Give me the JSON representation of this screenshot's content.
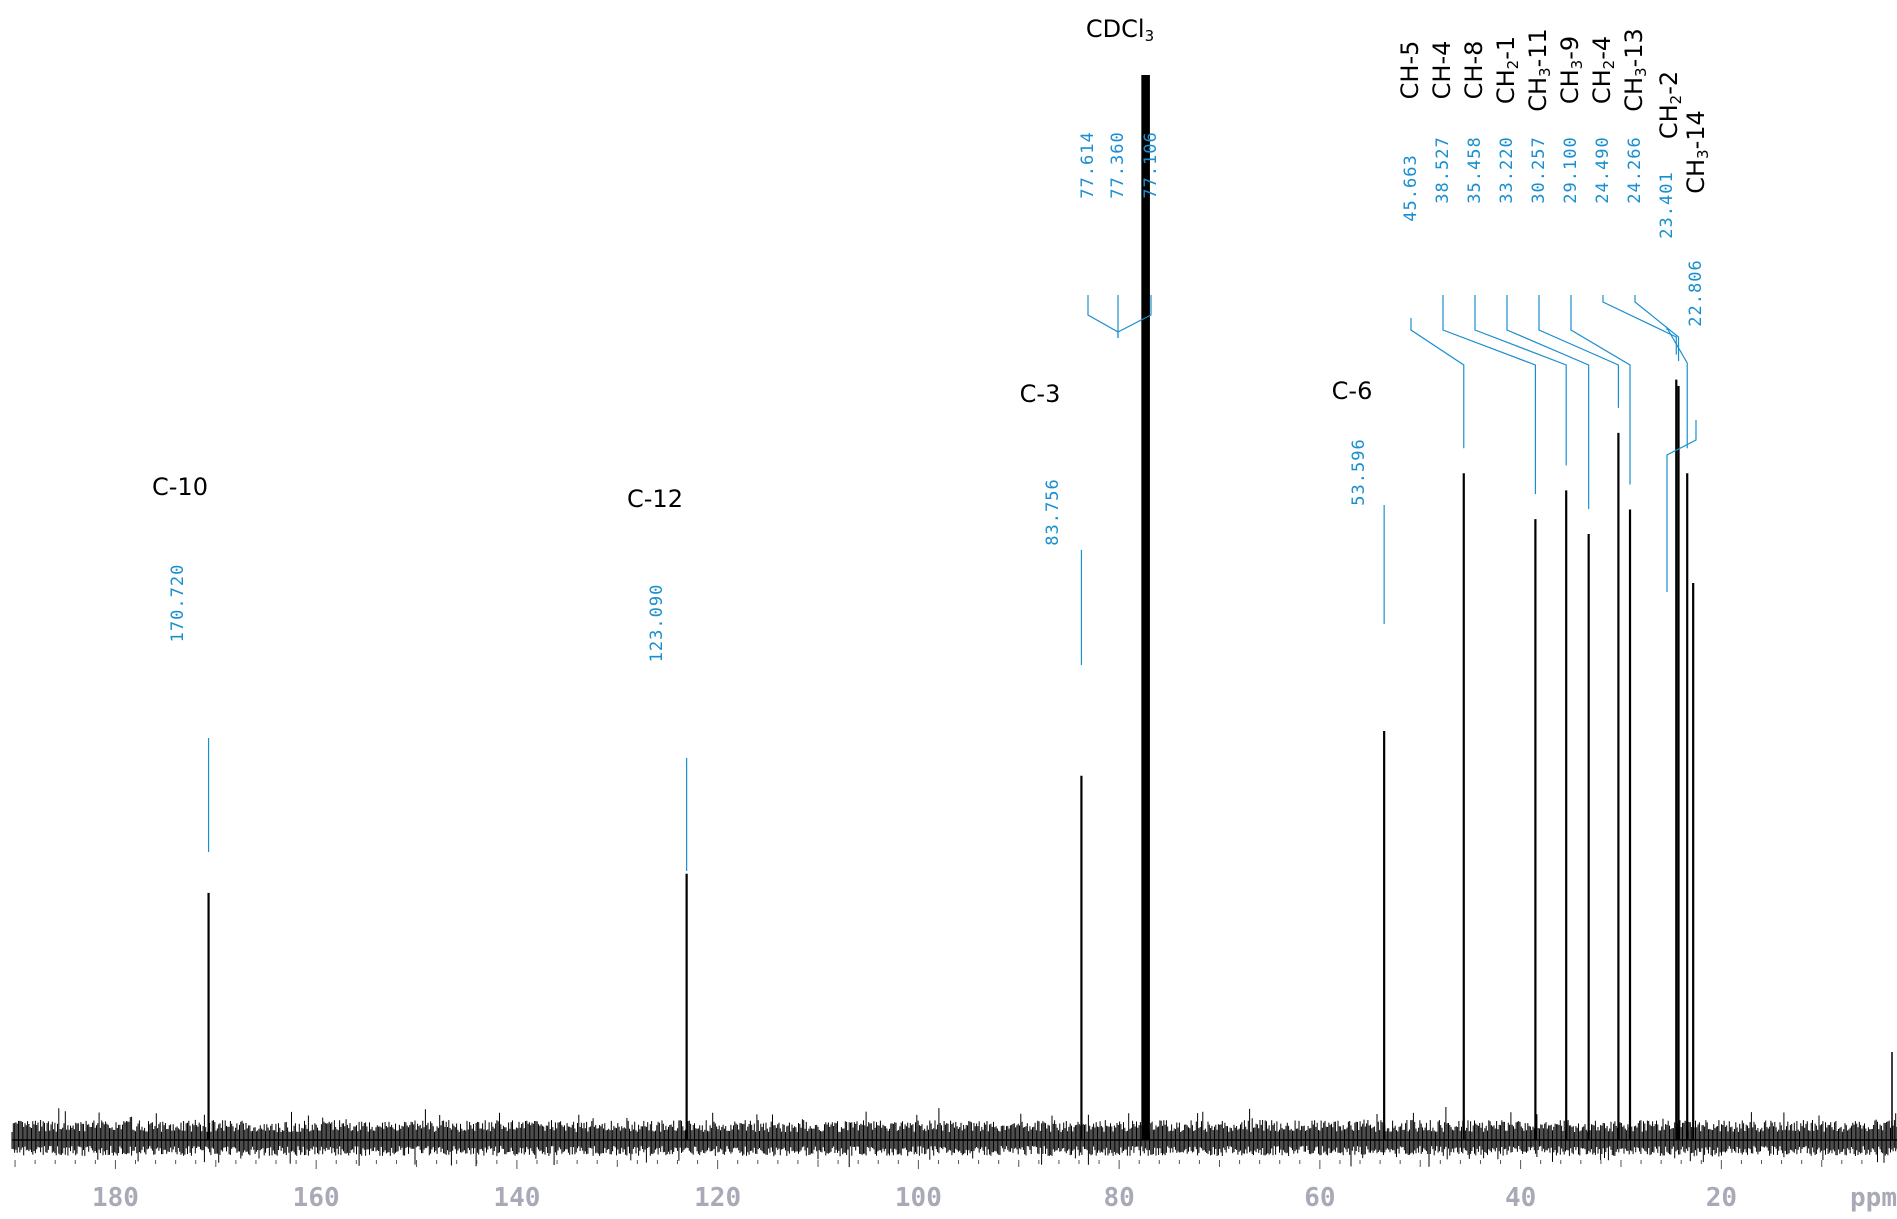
{
  "chart_data": {
    "type": "line",
    "xlabel": "ppm",
    "xlim": [
      191.5,
      2.5
    ],
    "x_ticks": [
      180,
      160,
      140,
      120,
      100,
      80,
      60,
      40,
      20
    ],
    "colors": {
      "spectrum": "#000000",
      "peak_label": "#1a8fd0",
      "tick_label": "#a9aab8",
      "assignment": "#000000"
    },
    "peaks": [
      {
        "ppm": 170.72,
        "label": "170.720",
        "intensity": 0.232
      },
      {
        "ppm": 123.09,
        "label": "123.090",
        "intensity": 0.25
      },
      {
        "ppm": 83.756,
        "label": "83.756",
        "intensity": 0.342
      },
      {
        "ppm": 77.614,
        "label": "77.614",
        "intensity": 1.0
      },
      {
        "ppm": 77.36,
        "label": "77.360",
        "intensity": 1.0
      },
      {
        "ppm": 77.106,
        "label": "77.106",
        "intensity": 1.0
      },
      {
        "ppm": 53.596,
        "label": "53.596",
        "intensity": 0.384
      },
      {
        "ppm": 45.663,
        "label": "45.663",
        "intensity": 0.626
      },
      {
        "ppm": 38.527,
        "label": "38.527",
        "intensity": 0.583
      },
      {
        "ppm": 35.458,
        "label": "35.458",
        "intensity": 0.61
      },
      {
        "ppm": 33.22,
        "label": "33.220",
        "intensity": 0.569
      },
      {
        "ppm": 30.257,
        "label": "30.257",
        "intensity": 0.664
      },
      {
        "ppm": 29.1,
        "label": "29.100",
        "intensity": 0.592
      },
      {
        "ppm": 24.49,
        "label": "24.490",
        "intensity": 0.714
      },
      {
        "ppm": 24.266,
        "label": "24.266",
        "intensity": 0.708
      },
      {
        "ppm": 23.401,
        "label": "23.401",
        "intensity": 0.626
      },
      {
        "ppm": 22.806,
        "label": "22.806",
        "intensity": 0.523
      }
    ],
    "assignments": [
      {
        "text": "C-10",
        "base": "C-10",
        "sub": "",
        "suffix": ""
      },
      {
        "text": "C-12",
        "base": "C-12",
        "sub": "",
        "suffix": ""
      },
      {
        "text": "C-3",
        "base": "C-3",
        "sub": "",
        "suffix": ""
      },
      {
        "text": "CDCl3",
        "base": "CDCl",
        "sub": "3",
        "suffix": ""
      },
      {
        "text": "C-6",
        "base": "C-6",
        "sub": "",
        "suffix": ""
      },
      {
        "text": "CH-5",
        "base": "CH-5",
        "sub": "",
        "suffix": ""
      },
      {
        "text": "CH-4",
        "base": "CH-4",
        "sub": "",
        "suffix": ""
      },
      {
        "text": "CH-8",
        "base": "CH-8",
        "sub": "",
        "suffix": ""
      },
      {
        "text": "CH2-1",
        "base": "CH",
        "sub": "2",
        "suffix": "-1"
      },
      {
        "text": "CH3-11",
        "base": "CH",
        "sub": "3",
        "suffix": "-11"
      },
      {
        "text": "CH3-9",
        "base": "CH",
        "sub": "3",
        "suffix": "-9"
      },
      {
        "text": "CH2-4",
        "base": "CH",
        "sub": "2",
        "suffix": "-4"
      },
      {
        "text": "CH3-13",
        "base": "CH",
        "sub": "3",
        "suffix": "-13"
      },
      {
        "text": "CH2-2",
        "base": "CH",
        "sub": "2",
        "suffix": "-2"
      },
      {
        "text": "CH3-14",
        "base": "CH",
        "sub": "3",
        "suffix": "-14"
      }
    ]
  }
}
